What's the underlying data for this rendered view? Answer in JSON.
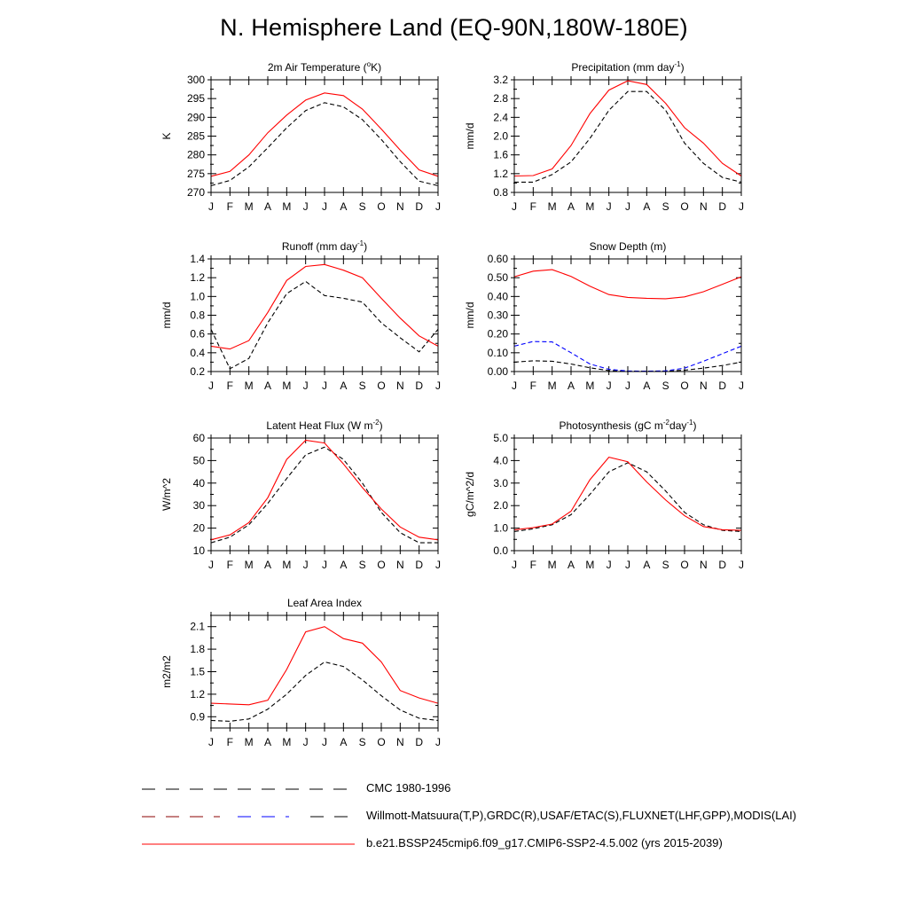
{
  "title": "N. Hemisphere Land (EQ-90N,180W-180E)",
  "months": [
    "J",
    "F",
    "M",
    "A",
    "M",
    "J",
    "J",
    "A",
    "S",
    "O",
    "N",
    "D",
    "J"
  ],
  "colors": {
    "model": "#ff0000",
    "obs": "#000000",
    "obs_blue": "#0000ff"
  },
  "chart_data": [
    {
      "id": "tas",
      "type": "line",
      "title": "2m Air Temperature (°K)",
      "title_parts": [
        "2m Air Temperature (",
        "o",
        "K)"
      ],
      "ylabel": "K",
      "ylim": [
        270,
        300
      ],
      "yticks": [
        270,
        275,
        280,
        285,
        290,
        295,
        300
      ],
      "ytick_labels": [
        "270",
        "275",
        "280",
        "285",
        "290",
        "295",
        "300"
      ],
      "series": [
        {
          "name": "obs",
          "values": [
            271.8,
            273.2,
            276.8,
            281.9,
            287.2,
            291.8,
            293.9,
            292.8,
            289.4,
            284.1,
            278.2,
            273.0,
            271.8
          ]
        },
        {
          "name": "model",
          "values": [
            274.3,
            275.6,
            280.0,
            285.9,
            290.6,
            294.6,
            296.5,
            295.8,
            292.2,
            286.9,
            281.3,
            276.0,
            274.3
          ]
        }
      ]
    },
    {
      "id": "precip",
      "type": "line",
      "title": "Precipitation (mm day-1)",
      "title_parts": [
        "Precipitation (mm day",
        "-1",
        ")"
      ],
      "ylabel": "mm/d",
      "ylim": [
        0.8,
        3.2
      ],
      "yticks": [
        0.8,
        1.2,
        1.6,
        2.0,
        2.4,
        2.8,
        3.2
      ],
      "ytick_labels": [
        "0.8",
        "1.2",
        "1.6",
        "2.0",
        "2.4",
        "2.8",
        "3.2"
      ],
      "series": [
        {
          "name": "obs",
          "values": [
            1.02,
            1.02,
            1.18,
            1.45,
            1.95,
            2.55,
            2.95,
            2.95,
            2.55,
            1.85,
            1.42,
            1.12,
            1.02
          ]
        },
        {
          "name": "model",
          "values": [
            1.15,
            1.16,
            1.3,
            1.8,
            2.48,
            2.98,
            3.18,
            3.1,
            2.7,
            2.18,
            1.85,
            1.42,
            1.15
          ]
        }
      ]
    },
    {
      "id": "runoff",
      "type": "line",
      "title": "Runoff (mm day-1)",
      "title_parts": [
        "Runoff (mm day",
        "-1",
        ")"
      ],
      "ylabel": "mm/d",
      "ylim": [
        0.2,
        1.4
      ],
      "yticks": [
        0.2,
        0.4,
        0.6,
        0.8,
        1.0,
        1.2,
        1.4
      ],
      "ytick_labels": [
        "0.2",
        "0.4",
        "0.6",
        "0.8",
        "1.0",
        "1.2",
        "1.4"
      ],
      "series": [
        {
          "name": "obs",
          "values": [
            0.65,
            0.23,
            0.34,
            0.72,
            1.03,
            1.16,
            1.01,
            0.98,
            0.94,
            0.72,
            0.56,
            0.41,
            0.65
          ]
        },
        {
          "name": "model",
          "values": [
            0.47,
            0.44,
            0.53,
            0.83,
            1.17,
            1.32,
            1.34,
            1.28,
            1.2,
            0.98,
            0.77,
            0.58,
            0.47
          ]
        }
      ]
    },
    {
      "id": "snowdepth",
      "type": "line",
      "title": "Snow Depth (m)",
      "title_parts": [
        "Snow Depth (m)"
      ],
      "ylabel": "mm/d",
      "ylim": [
        0,
        0.6
      ],
      "yticks": [
        0,
        0.1,
        0.2,
        0.3,
        0.4,
        0.5,
        0.6
      ],
      "ytick_labels": [
        "0.00",
        "0.10",
        "0.20",
        "0.30",
        "0.40",
        "0.50",
        "0.60"
      ],
      "series": [
        {
          "name": "obs",
          "values": [
            0.05,
            0.057,
            0.055,
            0.04,
            0.02,
            0.005,
            0.002,
            0.002,
            0.002,
            0.007,
            0.018,
            0.032,
            0.05
          ]
        },
        {
          "name": "obs_blue",
          "values": [
            0.135,
            0.16,
            0.158,
            0.1,
            0.04,
            0.012,
            0.003,
            0.002,
            0.004,
            0.018,
            0.055,
            0.095,
            0.135
          ]
        },
        {
          "name": "model",
          "values": [
            0.505,
            0.535,
            0.543,
            0.507,
            0.455,
            0.41,
            0.395,
            0.39,
            0.388,
            0.398,
            0.425,
            0.465,
            0.505
          ]
        }
      ]
    },
    {
      "id": "lhf",
      "type": "line",
      "title": "Latent Heat Flux (W m-2)",
      "title_parts": [
        "Latent Heat Flux (W m",
        "-2",
        ")"
      ],
      "ylabel": "W/m^2",
      "ylim": [
        10,
        60
      ],
      "yticks": [
        10,
        20,
        30,
        40,
        50,
        60
      ],
      "ytick_labels": [
        "10",
        "20",
        "30",
        "40",
        "50",
        "60"
      ],
      "series": [
        {
          "name": "obs",
          "values": [
            13.5,
            16.0,
            21.5,
            31.0,
            42.0,
            52.5,
            56.0,
            50.5,
            40.0,
            27.0,
            18.0,
            13.5,
            13.5
          ]
        },
        {
          "name": "model",
          "values": [
            14.8,
            17.0,
            22.5,
            33.5,
            50.5,
            59.0,
            57.8,
            48.5,
            38.0,
            28.5,
            20.5,
            16.0,
            14.8
          ]
        }
      ]
    },
    {
      "id": "gpp",
      "type": "line",
      "title": "Photosynthesis (gC m-2day-1)",
      "title_parts": [
        "Photosynthesis (gC m",
        "-2",
        "day",
        "-1",
        ")"
      ],
      "ylabel": "gC/m^2/d",
      "ylim": [
        0,
        5
      ],
      "yticks": [
        0,
        1,
        2,
        3,
        4,
        5
      ],
      "ytick_labels": [
        "0.0",
        "1.0",
        "2.0",
        "3.0",
        "4.0",
        "5.0"
      ],
      "series": [
        {
          "name": "obs",
          "values": [
            0.85,
            0.97,
            1.15,
            1.6,
            2.5,
            3.5,
            3.9,
            3.5,
            2.65,
            1.7,
            1.15,
            0.9,
            0.85
          ]
        },
        {
          "name": "model",
          "values": [
            0.92,
            1.02,
            1.18,
            1.75,
            3.15,
            4.15,
            3.95,
            3.05,
            2.25,
            1.55,
            1.07,
            0.93,
            0.9
          ]
        }
      ]
    },
    {
      "id": "lai",
      "type": "line",
      "title": "Leaf Area Index",
      "title_parts": [
        "Leaf Area Index"
      ],
      "ylabel": "m2/m2",
      "ylim": [
        0.75,
        2.25
      ],
      "yticks": [
        0.9,
        1.2,
        1.5,
        1.8,
        2.1
      ],
      "ytick_labels": [
        "0.9",
        "1.2",
        "1.5",
        "1.8",
        "2.1"
      ],
      "series": [
        {
          "name": "obs",
          "values": [
            0.85,
            0.84,
            0.87,
            1.0,
            1.2,
            1.45,
            1.63,
            1.57,
            1.39,
            1.18,
            0.99,
            0.88,
            0.85
          ]
        },
        {
          "name": "model",
          "values": [
            1.08,
            1.07,
            1.06,
            1.12,
            1.53,
            2.03,
            2.1,
            1.94,
            1.88,
            1.63,
            1.25,
            1.15,
            1.08
          ]
        }
      ]
    }
  ],
  "legend": [
    {
      "label": "CMC 1980-1996",
      "style": "dash-black"
    },
    {
      "label": "Willmott-Matsuura(T,P),GRDC(R),USAF/ETAC(S),FLUXNET(LHF,GPP),MODIS(LAI)",
      "style": "dash-mixed"
    },
    {
      "label": "b.e21.BSSP245cmip6.f09_g17.CMIP6-SSP2-4.5.002 (yrs 2015-2039)",
      "style": "solid-red"
    }
  ]
}
